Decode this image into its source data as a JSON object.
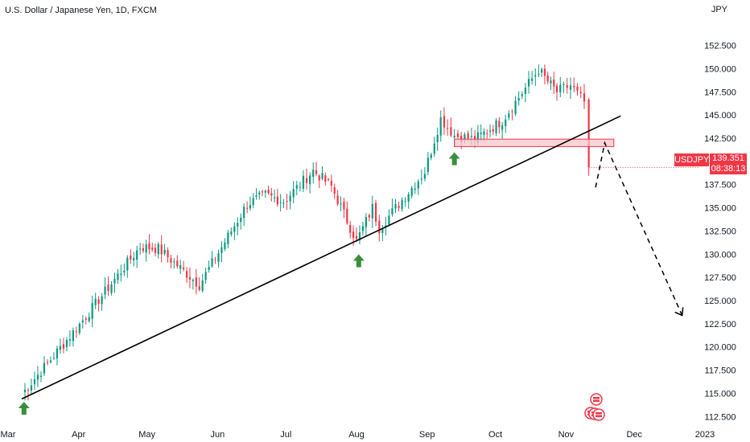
{
  "header": {
    "title": "U.S. Dollar / Japanese Yen, 1D, FXCM",
    "currency": "JPY"
  },
  "badges": {
    "symbol": "USDJPY",
    "price": "139.351",
    "countdown": "08:38:13"
  },
  "colors": {
    "up": "#089981",
    "down": "#f23645",
    "zone_fill": "#f7c6cc",
    "zone_border": "#f23645",
    "arrow_up": "#3a8f3e",
    "trendline": "#000000"
  },
  "chart_data": {
    "type": "candlestick",
    "x_months": [
      "Mar",
      "Apr",
      "May",
      "Jun",
      "Jul",
      "Aug",
      "Sep",
      "Oct",
      "Nov",
      "Dec",
      "2023"
    ],
    "yticks": [
      "152.500",
      "150.000",
      "147.500",
      "145.000",
      "142.500",
      "140.000",
      "137.500",
      "135.000",
      "132.500",
      "130.000",
      "127.500",
      "125.000",
      "122.500",
      "120.000",
      "117.500",
      "115.000",
      "112.500"
    ],
    "ylim": [
      111.4,
      153.9
    ],
    "anchors": [
      {
        "date": "2022-03-07",
        "value": 114.9
      },
      {
        "date": "2022-03-31",
        "value": 122.0
      },
      {
        "date": "2022-04-28",
        "value": 130.8
      },
      {
        "date": "2022-05-06",
        "value": 130.6
      },
      {
        "date": "2022-05-24",
        "value": 126.7
      },
      {
        "date": "2022-06-14",
        "value": 135.4
      },
      {
        "date": "2022-06-22",
        "value": 136.4
      },
      {
        "date": "2022-06-30",
        "value": 135.7
      },
      {
        "date": "2022-07-13",
        "value": 139.0
      },
      {
        "date": "2022-07-21",
        "value": 137.3
      },
      {
        "date": "2022-08-01",
        "value": 131.4
      },
      {
        "date": "2022-08-08",
        "value": 135.0
      },
      {
        "date": "2022-08-11",
        "value": 132.8
      },
      {
        "date": "2022-08-31",
        "value": 138.9
      },
      {
        "date": "2022-09-07",
        "value": 144.6
      },
      {
        "date": "2022-09-13",
        "value": 142.8
      },
      {
        "date": "2022-09-22",
        "value": 142.4
      },
      {
        "date": "2022-10-04",
        "value": 144.4
      },
      {
        "date": "2022-10-20",
        "value": 149.9
      },
      {
        "date": "2022-10-24",
        "value": 148.6
      },
      {
        "date": "2022-10-28",
        "value": 147.5
      },
      {
        "date": "2022-11-03",
        "value": 148.2
      },
      {
        "date": "2022-11-09",
        "value": 146.4
      },
      {
        "date": "2022-11-11",
        "value": 139.35
      }
    ],
    "support_arrows": [
      {
        "date": "2022-03-08",
        "value": 114.6
      },
      {
        "date": "2022-08-02",
        "value": 130.5
      },
      {
        "date": "2022-09-13",
        "value": 141.5
      }
    ],
    "trendline": {
      "from": {
        "date": "2022-03-07",
        "value": 114.4
      },
      "to": {
        "date": "2022-11-25",
        "value": 144.9
      }
    },
    "resistance_zone": {
      "from": "2022-09-13",
      "to": "2022-11-22",
      "low": 141.6,
      "high": 142.4
    },
    "projection_path": [
      {
        "date": "2022-11-14",
        "value": 137.2
      },
      {
        "date": "2022-11-18",
        "value": 142.0
      },
      {
        "date": "2022-12-22",
        "value": 123.4
      }
    ],
    "last_price": 139.351
  }
}
